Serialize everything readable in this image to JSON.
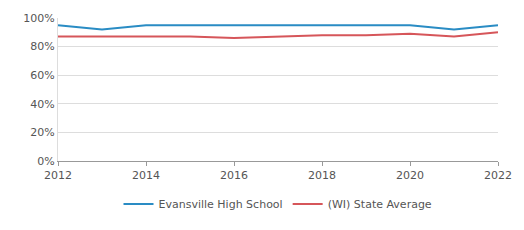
{
  "chart_data": {
    "type": "line",
    "x": [
      2012,
      2013,
      2014,
      2015,
      2016,
      2017,
      2018,
      2019,
      2020,
      2021,
      2022
    ],
    "series": [
      {
        "name": "Evansville High School",
        "color": "#2a8cc4",
        "values": [
          95,
          92,
          95,
          95,
          95,
          95,
          95,
          95,
          95,
          92,
          95
        ]
      },
      {
        "name": "(WI) State Average",
        "color": "#d6565a",
        "values": [
          87,
          87,
          87,
          87,
          86,
          87,
          88,
          88,
          89,
          87,
          90
        ]
      }
    ],
    "xlim": [
      2012,
      2022
    ],
    "xticks": [
      2012,
      2014,
      2016,
      2018,
      2020,
      2022
    ],
    "ylim": [
      0,
      100
    ],
    "yticks": [
      {
        "value": 0,
        "label": "0%"
      },
      {
        "value": 20,
        "label": "20%"
      },
      {
        "value": 40,
        "label": "40%"
      },
      {
        "value": 60,
        "label": "60%"
      },
      {
        "value": 80,
        "label": "80%"
      },
      {
        "value": 100,
        "label": "100%"
      }
    ],
    "grid": true,
    "legend": "bottom"
  }
}
